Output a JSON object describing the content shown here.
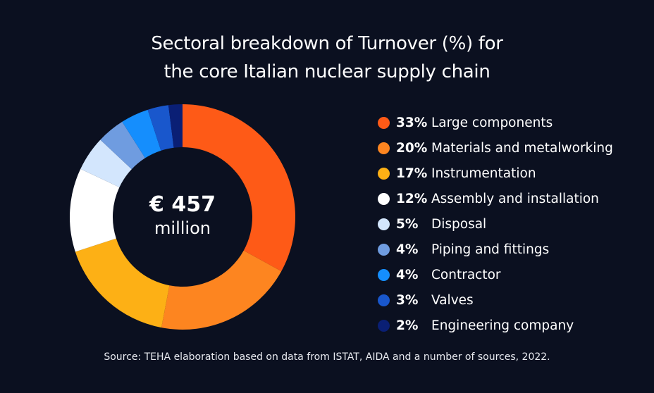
{
  "chart_data": {
    "type": "pie",
    "donut": true,
    "title_lines": [
      "Sectoral breakdown of Turnover (%) for",
      "the core Italian nuclear supply chain"
    ],
    "center_value": "€ 457",
    "center_unit": "million",
    "start": "top, clockwise",
    "legend_position": "right",
    "slices": [
      {
        "label": "Large components",
        "pct_label": "33%",
        "value": 33,
        "color": "#fe5a17"
      },
      {
        "label": "Materials and metalworking",
        "pct_label": "20%",
        "value": 20,
        "color": "#fd8520"
      },
      {
        "label": "Instrumentation",
        "pct_label": "17%",
        "value": 17,
        "color": "#fdb015"
      },
      {
        "label": "Assembly and installation",
        "pct_label": "12%",
        "value": 12,
        "color": "#ffffff"
      },
      {
        "label": "Disposal",
        "pct_label": "5%",
        "value": 5,
        "color": "#d3e6fd"
      },
      {
        "label": "Piping and fittings",
        "pct_label": "4%",
        "value": 4,
        "color": "#6f9ce0"
      },
      {
        "label": "Contractor",
        "pct_label": "4%",
        "value": 4,
        "color": "#158efd"
      },
      {
        "label": "Valves",
        "pct_label": "3%",
        "value": 3,
        "color": "#1957cc"
      },
      {
        "label": "Engineering company",
        "pct_label": "2%",
        "value": 2,
        "color": "#0a1f75"
      }
    ],
    "source": "Source: TEHA elaboration based on data from ISTAT, AIDA and a number of sources, 2022."
  }
}
